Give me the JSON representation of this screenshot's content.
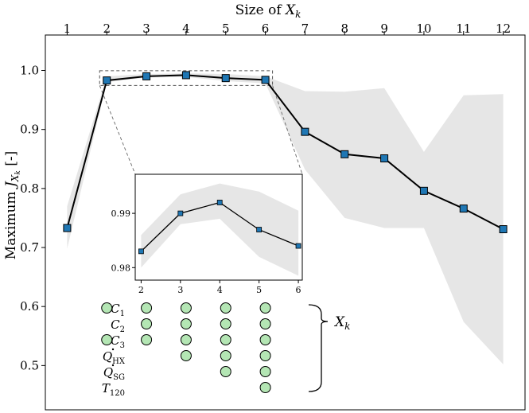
{
  "chart_data": {
    "type": "line",
    "x_axis_label": "Size of X_k",
    "y_axis_label": "Maximum J_Xk [-]",
    "x": [
      1,
      2,
      3,
      4,
      5,
      6,
      7,
      8,
      9,
      10,
      11,
      12
    ],
    "xticks": [
      "1",
      "2",
      "3",
      "4",
      "5",
      "6",
      "7",
      "8",
      "9",
      "10",
      "11",
      "12"
    ],
    "xlim": [
      0.45,
      12.55
    ],
    "ylim": [
      0.425,
      1.06
    ],
    "yticks": [
      0.5,
      0.6,
      0.7,
      0.8,
      0.9,
      1.0
    ],
    "ytick_labels": [
      "0.5",
      "0.6",
      "0.7",
      "0.8",
      "0.9",
      "1.0"
    ],
    "series": [
      {
        "values": [
          0.733,
          0.983,
          0.99,
          0.992,
          0.987,
          0.984,
          0.896,
          0.858,
          0.851,
          0.796,
          0.766,
          0.731
        ],
        "color": "#1f77b4"
      }
    ],
    "band_upper": [
      0.77,
      0.99,
      0.994,
      0.995,
      0.994,
      0.99,
      0.965,
      0.964,
      0.97,
      0.862,
      0.958,
      0.96
    ],
    "band_lower": [
      0.698,
      0.98,
      0.988,
      0.989,
      0.982,
      0.978,
      0.832,
      0.75,
      0.733,
      0.733,
      0.574,
      0.502
    ],
    "inset": {
      "x": [
        2,
        3,
        4,
        5,
        6
      ],
      "values": [
        0.983,
        0.99,
        0.992,
        0.987,
        0.984
      ],
      "band_upper": [
        0.986,
        0.9935,
        0.9955,
        0.994,
        0.9905
      ],
      "band_lower": [
        0.98,
        0.988,
        0.989,
        0.982,
        0.9785
      ],
      "xticks": [
        "2",
        "3",
        "4",
        "5",
        "6"
      ],
      "yticks": [
        0.98,
        0.99
      ],
      "ytick_labels": [
        "0.98",
        "0.99"
      ],
      "xlim": [
        1.85,
        6.1
      ],
      "ylim": [
        0.9777,
        0.9972
      ]
    },
    "selection_matrix": {
      "rows": [
        "C1",
        "C2",
        "C3",
        "Q_HX",
        "Q_SG",
        "T120"
      ],
      "columns": [
        2,
        3,
        4,
        5,
        6
      ],
      "selected": [
        [
          1,
          1,
          1,
          1,
          1
        ],
        [
          0,
          1,
          1,
          1,
          1
        ],
        [
          1,
          1,
          1,
          1,
          1
        ],
        [
          0,
          0,
          1,
          1,
          1
        ],
        [
          0,
          0,
          0,
          1,
          1
        ],
        [
          0,
          0,
          0,
          0,
          1
        ]
      ],
      "brace_label": "X_k"
    }
  },
  "colors": {
    "band": "#e6e6e6",
    "marker": "#1f77b4",
    "dot": "#b4e6b4",
    "line": "#000000"
  }
}
